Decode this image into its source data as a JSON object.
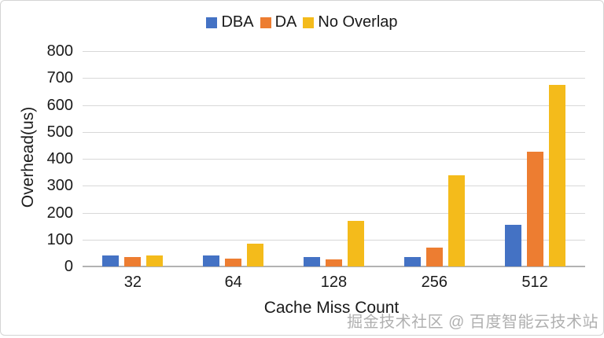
{
  "chart_data": {
    "type": "bar",
    "categories": [
      "32",
      "64",
      "128",
      "256",
      "512"
    ],
    "series": [
      {
        "name": "DBA",
        "color": "#4472C4",
        "values": [
          40,
          40,
          35,
          35,
          155
        ]
      },
      {
        "name": "DA",
        "color": "#ED7D31",
        "values": [
          35,
          30,
          25,
          70,
          425
        ]
      },
      {
        "name": "No Overlap",
        "color": "#F4BB1B",
        "values": [
          40,
          85,
          170,
          340,
          675
        ]
      }
    ],
    "xlabel": "Cache Miss Count",
    "ylabel": "Overhead(us)",
    "ylim": [
      0,
      800
    ],
    "ytick_step": 100,
    "grid": true,
    "legend_position": "top"
  },
  "watermark": "掘金技术社区 @ 百度智能云技术站"
}
